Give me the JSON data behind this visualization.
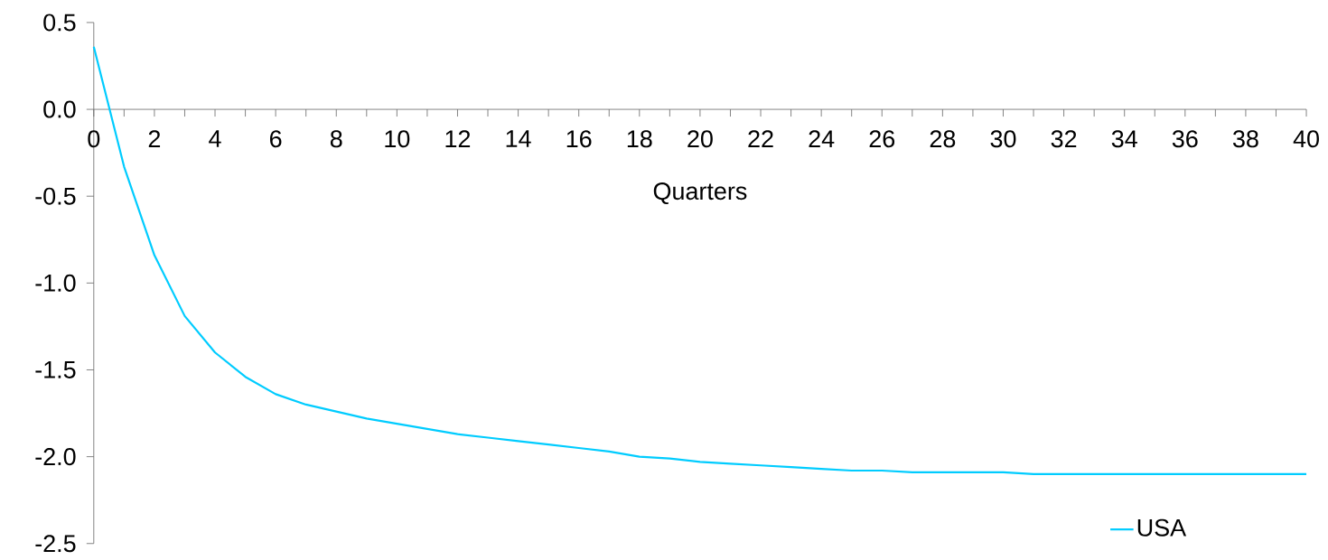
{
  "chart_data": {
    "type": "line",
    "xlabel": "Quarters",
    "x": [
      0,
      1,
      2,
      3,
      4,
      5,
      6,
      7,
      8,
      9,
      10,
      11,
      12,
      13,
      14,
      15,
      16,
      17,
      18,
      19,
      20,
      21,
      22,
      23,
      24,
      25,
      26,
      27,
      28,
      29,
      30,
      31,
      32,
      33,
      34,
      35,
      36,
      37,
      38,
      39,
      40
    ],
    "series": [
      {
        "name": "USA",
        "color": "#00ccff",
        "values": [
          0.36,
          -0.33,
          -0.84,
          -1.19,
          -1.4,
          -1.54,
          -1.64,
          -1.7,
          -1.74,
          -1.78,
          -1.81,
          -1.84,
          -1.87,
          -1.89,
          -1.91,
          -1.93,
          -1.95,
          -1.97,
          -2.0,
          -2.01,
          -2.03,
          -2.04,
          -2.05,
          -2.06,
          -2.07,
          -2.08,
          -2.08,
          -2.09,
          -2.09,
          -2.09,
          -2.09,
          -2.1,
          -2.1,
          -2.1,
          -2.1,
          -2.1,
          -2.1,
          -2.1,
          -2.1,
          -2.1,
          -2.1
        ]
      }
    ],
    "xlim": [
      0,
      40
    ],
    "xticks": [
      0,
      {
        "value": 1,
        "label": null
      },
      2,
      {
        "value": 3,
        "label": null
      },
      4,
      {
        "value": 5,
        "label": null
      },
      6,
      {
        "value": 7,
        "label": null
      },
      8,
      {
        "value": 9,
        "label": null
      },
      10,
      {
        "value": 11,
        "label": null
      },
      12,
      {
        "value": 13,
        "label": null
      },
      14,
      {
        "value": 15,
        "label": null
      },
      16,
      {
        "value": 17,
        "label": null
      },
      18,
      {
        "value": 19,
        "label": null
      },
      20,
      {
        "value": 21,
        "label": null
      },
      22,
      {
        "value": 23,
        "label": null
      },
      24,
      {
        "value": 25,
        "label": null
      },
      26,
      {
        "value": 27,
        "label": null
      },
      28,
      {
        "value": 29,
        "label": null
      },
      30,
      {
        "value": 31,
        "label": null
      },
      32,
      {
        "value": 33,
        "label": null
      },
      34,
      {
        "value": 35,
        "label": null
      },
      36,
      {
        "value": 37,
        "label": null
      },
      38,
      {
        "value": 39,
        "label": null
      },
      40
    ],
    "ylim": [
      -2.5,
      0.5
    ],
    "yticks": [
      {
        "value": 0.5,
        "label": "0.5"
      },
      {
        "value": 0.0,
        "label": "0.0"
      },
      {
        "value": -0.5,
        "label": "-0.5"
      },
      {
        "value": -1.0,
        "label": "-1.0"
      },
      {
        "value": -1.5,
        "label": "-1.5"
      },
      {
        "value": -2.0,
        "label": "-2.0"
      },
      {
        "value": -2.5,
        "label": "-2.5"
      }
    ],
    "line_style": "solid",
    "grid": false,
    "legend": "bottom right"
  }
}
